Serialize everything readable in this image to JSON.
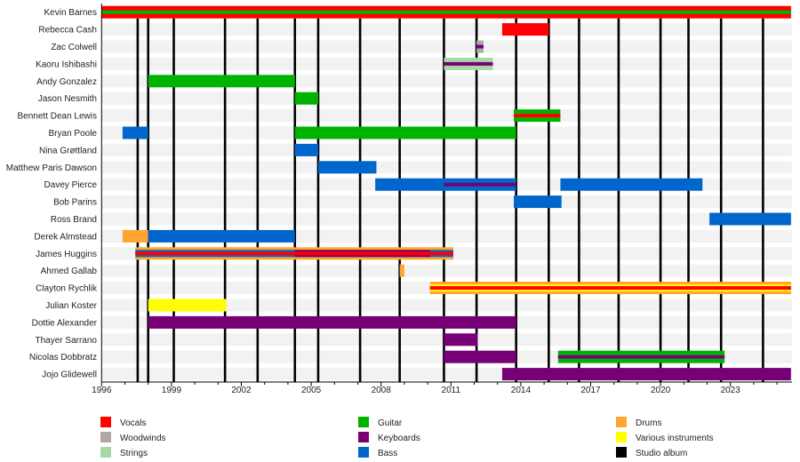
{
  "chart_data": {
    "type": "timeline",
    "x_ticks": [
      1996,
      1999,
      2002,
      2005,
      2008,
      2011,
      2014,
      2017,
      2020,
      2023
    ],
    "xlim": [
      1996,
      2025.6
    ],
    "role_colors": {
      "vocals": "#ff0000",
      "woodwinds": "#b3a6a3",
      "strings": "#a8d8a8",
      "guitar": "#00b300",
      "keyboards": "#770077",
      "bass": "#0066cc",
      "drums": "#ffa530",
      "various": "#ffff00",
      "album": "#000000"
    },
    "legend": [
      {
        "role": "vocals",
        "label": "Vocals"
      },
      {
        "role": "woodwinds",
        "label": "Woodwinds"
      },
      {
        "role": "strings",
        "label": "Strings"
      },
      {
        "role": "guitar",
        "label": "Guitar"
      },
      {
        "role": "keyboards",
        "label": "Keyboards"
      },
      {
        "role": "bass",
        "label": "Bass"
      },
      {
        "role": "drums",
        "label": "Drums"
      },
      {
        "role": "various",
        "label": "Various instruments"
      },
      {
        "role": "album",
        "label": "Studio album"
      }
    ],
    "studio_albums": [
      1997.55,
      1998.0,
      1999.1,
      2001.3,
      2002.7,
      2004.3,
      2005.3,
      2007.1,
      2008.8,
      2010.7,
      2012.1,
      2013.8,
      2015.2,
      2016.5,
      2018.2,
      2020.0,
      2021.2,
      2022.6,
      2024.4
    ],
    "members": [
      {
        "name": "Kevin Barnes",
        "bars": [
          {
            "start": 1996,
            "end": 2025.6,
            "role": "vocals",
            "layer": 0
          },
          {
            "start": 1996,
            "end": 2025.6,
            "role": "guitar",
            "layer": 2
          }
        ]
      },
      {
        "name": "Rebecca Cash",
        "bars": [
          {
            "start": 2013.2,
            "end": 2015.2,
            "role": "vocals",
            "layer": 0
          }
        ]
      },
      {
        "name": "Zac Colwell",
        "bars": [
          {
            "start": 2012.1,
            "end": 2012.4,
            "role": "woodwinds",
            "layer": 0
          },
          {
            "start": 2012.1,
            "end": 2012.4,
            "role": "keyboards",
            "layer": 2
          }
        ]
      },
      {
        "name": "Kaoru Ishibashi",
        "bars": [
          {
            "start": 2010.7,
            "end": 2012.8,
            "role": "strings",
            "layer": 0
          },
          {
            "start": 2010.7,
            "end": 2012.8,
            "role": "keyboards",
            "layer": 2
          }
        ]
      },
      {
        "name": "Andy Gonzalez",
        "bars": [
          {
            "start": 1998.0,
            "end": 2004.3,
            "role": "guitar",
            "layer": 0
          }
        ]
      },
      {
        "name": "Jason Nesmith",
        "bars": [
          {
            "start": 2004.3,
            "end": 2005.3,
            "role": "guitar",
            "layer": 0
          }
        ]
      },
      {
        "name": "Bennett Dean Lewis",
        "bars": [
          {
            "start": 2013.7,
            "end": 2015.7,
            "role": "guitar",
            "layer": 0
          },
          {
            "start": 2013.7,
            "end": 2015.7,
            "role": "vocals",
            "layer": 2
          }
        ]
      },
      {
        "name": "Bryan Poole",
        "bars": [
          {
            "start": 1996.9,
            "end": 1998.0,
            "role": "bass",
            "layer": 0
          },
          {
            "start": 2004.3,
            "end": 2013.8,
            "role": "guitar",
            "layer": 0
          }
        ]
      },
      {
        "name": "Nina Grøttland",
        "bars": [
          {
            "start": 2004.3,
            "end": 2005.3,
            "role": "bass",
            "layer": 0
          }
        ]
      },
      {
        "name": "Matthew Paris Dawson",
        "bars": [
          {
            "start": 2005.3,
            "end": 2007.8,
            "role": "bass",
            "layer": 0
          }
        ]
      },
      {
        "name": "Davey Pierce",
        "bars": [
          {
            "start": 2007.75,
            "end": 2013.8,
            "role": "bass",
            "layer": 0
          },
          {
            "start": 2010.7,
            "end": 2013.8,
            "role": "keyboards",
            "layer": 2
          },
          {
            "start": 2015.7,
            "end": 2021.8,
            "role": "bass",
            "layer": 0
          }
        ]
      },
      {
        "name": "Bob Parins",
        "bars": [
          {
            "start": 2013.7,
            "end": 2015.75,
            "role": "bass",
            "layer": 0
          }
        ]
      },
      {
        "name": "Ross Brand",
        "bars": [
          {
            "start": 2022.1,
            "end": 2025.6,
            "role": "bass",
            "layer": 0
          }
        ]
      },
      {
        "name": "Derek Almstead",
        "bars": [
          {
            "start": 1996.9,
            "end": 1998.0,
            "role": "drums",
            "layer": 0
          },
          {
            "start": 1998.0,
            "end": 2004.3,
            "role": "bass",
            "layer": 0
          }
        ]
      },
      {
        "name": "James Huggins",
        "bars": [
          {
            "start": 1997.45,
            "end": 2011.1,
            "role": "drums",
            "layer": 0
          },
          {
            "start": 1997.45,
            "end": 2011.1,
            "role": "bass",
            "layer": 1
          },
          {
            "start": 2004.3,
            "end": 2010.1,
            "role": "keyboards",
            "layer": 1
          },
          {
            "start": 1997.45,
            "end": 2011.1,
            "role": "vocals",
            "layer": 2
          }
        ]
      },
      {
        "name": "Ahmed Gallab",
        "bars": [
          {
            "start": 2008.8,
            "end": 2009.0,
            "role": "drums",
            "layer": 0
          }
        ]
      },
      {
        "name": "Clayton Rychlik",
        "bars": [
          {
            "start": 2010.1,
            "end": 2025.6,
            "role": "drums",
            "layer": 0
          },
          {
            "start": 2010.1,
            "end": 2025.6,
            "role": "various",
            "layer": 1
          },
          {
            "start": 2010.1,
            "end": 2025.6,
            "role": "vocals",
            "layer": 2
          }
        ]
      },
      {
        "name": "Julian Koster",
        "bars": [
          {
            "start": 1998.0,
            "end": 2001.35,
            "role": "various",
            "layer": 0
          }
        ]
      },
      {
        "name": "Dottie Alexander",
        "bars": [
          {
            "start": 1998.0,
            "end": 2013.8,
            "role": "keyboards",
            "layer": 0
          }
        ]
      },
      {
        "name": "Thayer Sarrano",
        "bars": [
          {
            "start": 2010.7,
            "end": 2012.15,
            "role": "keyboards",
            "layer": 0
          }
        ]
      },
      {
        "name": "Nicolas Dobbratz",
        "bars": [
          {
            "start": 2010.7,
            "end": 2013.8,
            "role": "keyboards",
            "layer": 0
          },
          {
            "start": 2015.6,
            "end": 2022.75,
            "role": "guitar",
            "layer": 0
          },
          {
            "start": 2015.6,
            "end": 2022.75,
            "role": "keyboards",
            "layer": 2
          }
        ]
      },
      {
        "name": "Jojo Glidewell",
        "bars": [
          {
            "start": 2013.2,
            "end": 2025.6,
            "role": "keyboards",
            "layer": 0
          }
        ]
      }
    ]
  }
}
